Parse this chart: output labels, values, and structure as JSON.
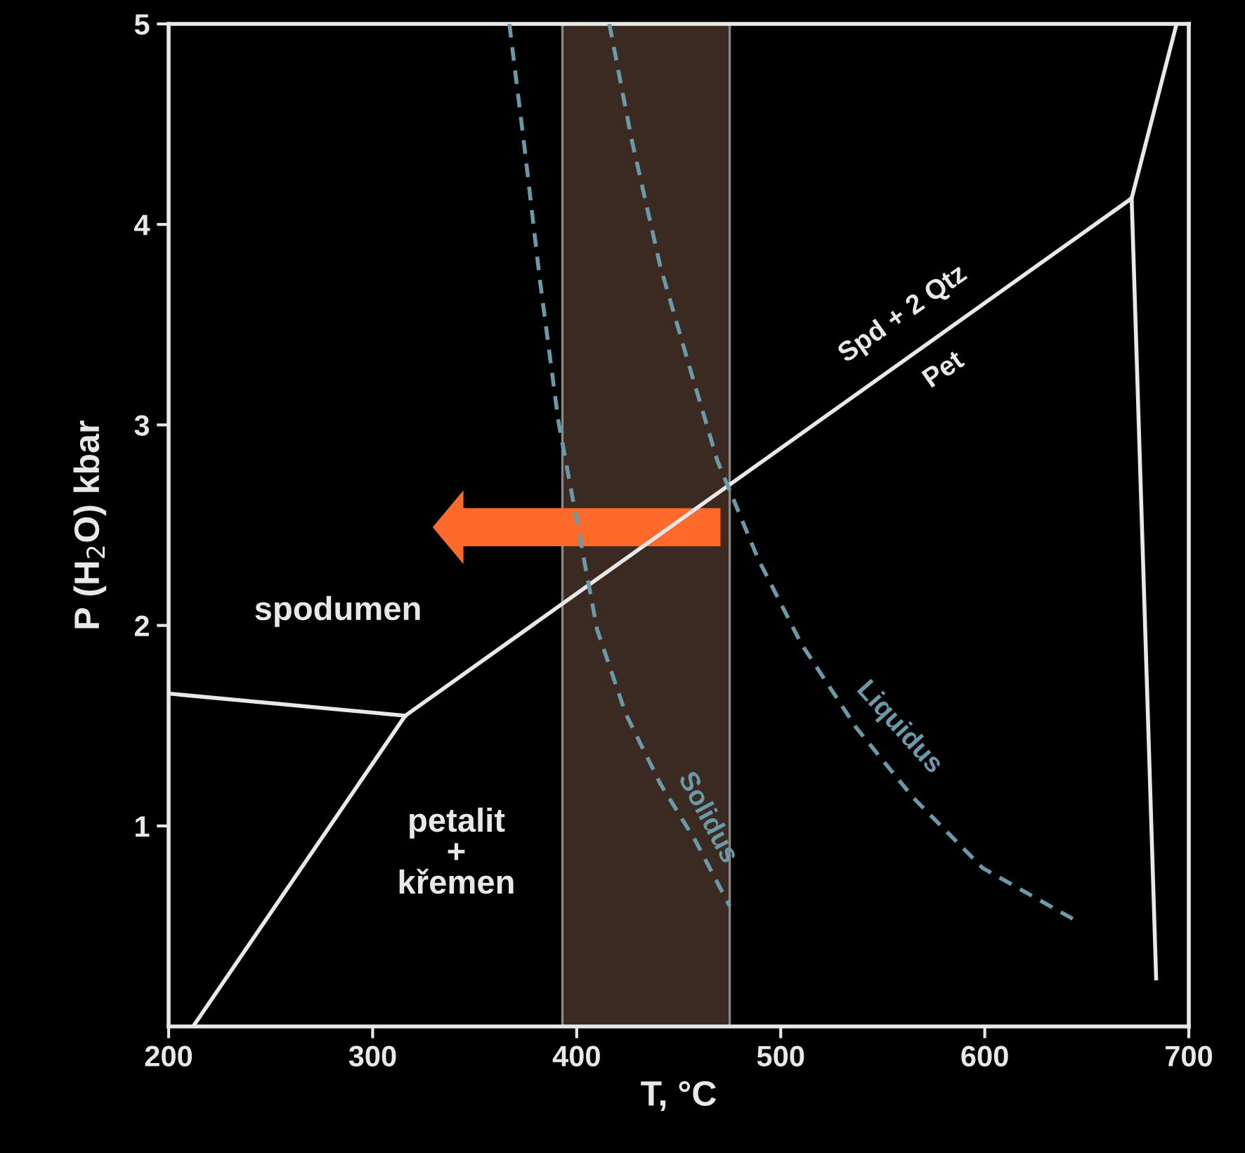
{
  "chart_data": {
    "type": "line",
    "xlabel": "T, °C",
    "ylabel": "P (H$_{2}$O) kbar",
    "xlim": [
      200,
      700
    ],
    "xticks": [
      200,
      300,
      400,
      500,
      600,
      700
    ],
    "ylim": [
      0,
      5
    ],
    "yticks": [
      1,
      2,
      3,
      4,
      5
    ],
    "grid": false,
    "legend": false,
    "series": [
      {
        "color": "#e8e8e8",
        "line_style": "solid",
        "x": [
          212,
          316,
          672,
          694
        ],
        "values": [
          0,
          1.55,
          4.13,
          5
        ]
      },
      {
        "color": "#e8e8e8",
        "line_style": "solid",
        "x": [
          200,
          316
        ],
        "values": [
          1.66,
          1.55
        ]
      },
      {
        "color": "#e8e8e8",
        "line_style": "solid",
        "x": [
          672,
          684
        ],
        "values": [
          4.13,
          0.24
        ]
      },
      {
        "color": "#6a9aa8",
        "line_style": "dashed",
        "x": [
          367,
          374,
          382,
          391,
          401,
          410,
          424,
          441,
          458,
          475
        ],
        "values": [
          5.0,
          4.42,
          3.72,
          3.02,
          2.47,
          1.98,
          1.56,
          1.21,
          0.93,
          0.6
        ]
      },
      {
        "color": "#6a9aa8",
        "line_style": "dashed",
        "x": [
          416,
          427,
          441,
          455,
          469,
          489,
          510,
          537,
          565,
          599,
          646
        ],
        "values": [
          5.0,
          4.42,
          3.79,
          3.3,
          2.82,
          2.33,
          1.91,
          1.49,
          1.14,
          0.79,
          0.52
        ]
      }
    ],
    "bands": [
      {
        "axis": "x",
        "from": 393,
        "to": 475,
        "color": "#3b2a22"
      }
    ],
    "annotations": [
      "spodumen",
      "petalit\n+\nkřemen",
      "Spd + 2 Qtz",
      "Pet",
      "Solidus",
      "Liquidus"
    ]
  }
}
